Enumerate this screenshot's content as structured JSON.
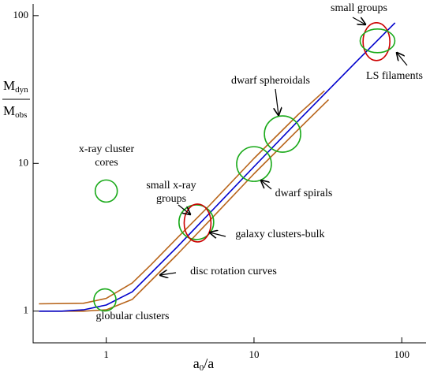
{
  "chart_data": {
    "type": "line",
    "log_x": true,
    "log_y": true,
    "xlabel": [
      "a",
      "0",
      "/a"
    ],
    "ylabel": {
      "numerator": [
        "M",
        "dyn"
      ],
      "denominator": [
        "M",
        "obs"
      ]
    },
    "xlim": [
      0.32,
      146
    ],
    "ylim": [
      0.61,
      120
    ],
    "xticks": [
      1,
      10,
      100
    ],
    "yticks": [
      1,
      10,
      100
    ],
    "series": [
      {
        "color": "#b8651b",
        "x": [
          0.35,
          0.7,
          1,
          1.5,
          2,
          3,
          5,
          10,
          20,
          30
        ],
        "values": [
          1.12,
          1.13,
          1.22,
          1.55,
          2.05,
          3.1,
          5.2,
          10.8,
          21.5,
          31
        ]
      },
      {
        "color": "#b8651b",
        "x": [
          0.35,
          0.7,
          1,
          1.5,
          2,
          3,
          5,
          10,
          20,
          32
        ],
        "values": [
          1,
          1,
          1.02,
          1.2,
          1.6,
          2.4,
          4.1,
          8.5,
          17,
          27
        ]
      },
      {
        "color": "#0000cc",
        "x": [
          0.35,
          0.5,
          0.7,
          1,
          1.5,
          2,
          3,
          5,
          10,
          20,
          50,
          90
        ],
        "values": [
          1,
          1,
          1.02,
          1.1,
          1.35,
          1.8,
          2.7,
          4.6,
          9.5,
          19.5,
          49.5,
          89.5
        ]
      }
    ],
    "regions": [
      {
        "x": 67.4,
        "y": 66.7,
        "color": "#cc0000"
      },
      {
        "x": 68.5,
        "y": 67.5,
        "color": "#1aaa1a"
      },
      {
        "x": 15.6,
        "y": 15.8,
        "color": "#1aaa1a"
      },
      {
        "x": 10,
        "y": 9.9,
        "color": "#1aaa1a"
      },
      {
        "x": 1,
        "y": 6.5,
        "color": "#1aaa1a"
      },
      {
        "x": 4.07,
        "y": 4,
        "color": "#1aaa1a"
      },
      {
        "x": 4.15,
        "y": 3.95,
        "color": "#cc0000"
      },
      {
        "x": 0.98,
        "y": 1.19,
        "color": "#1aaa1a"
      }
    ],
    "annotations": [
      {
        "lines": [
          "small groups"
        ]
      },
      {
        "lines": [
          "LS filaments"
        ]
      },
      {
        "lines": [
          "dwarf spheroidals"
        ]
      },
      {
        "lines": [
          "x-ray cluster",
          "cores"
        ]
      },
      {
        "lines": [
          "small x-ray",
          "groups"
        ]
      },
      {
        "lines": [
          "dwarf spirals"
        ]
      },
      {
        "lines": [
          "galaxy clusters-bulk"
        ]
      },
      {
        "lines": [
          "disc rotation curves"
        ]
      },
      {
        "lines": [
          "globular clusters"
        ]
      }
    ]
  }
}
